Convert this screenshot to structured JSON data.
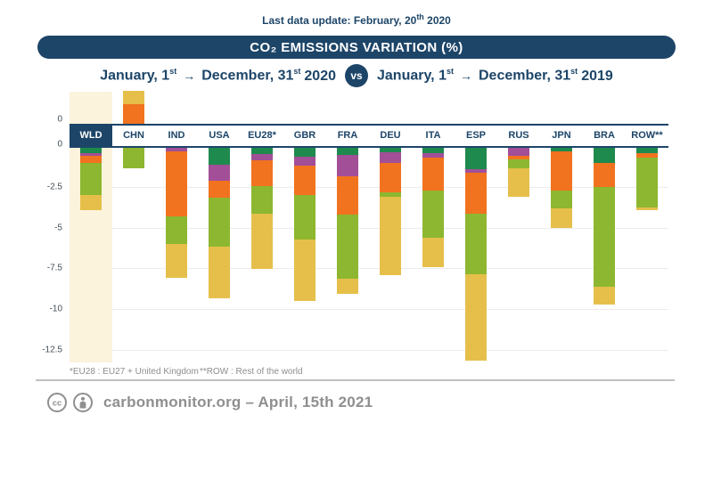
{
  "update_note": {
    "prefix": "Last data update: February, 20",
    "sup": "th",
    "suffix": " 2020"
  },
  "title": "CO₂ EMISSIONS VARIATION (%)",
  "subtitle": {
    "left": {
      "d1": "January, 1",
      "s1": "st",
      "arrow": "→",
      "d2": "December, 31",
      "s2": "st",
      "year": "2020"
    },
    "vs": "vs",
    "right": {
      "d1": "January, 1",
      "s1": "st",
      "arrow": "→",
      "d2": "December, 31",
      "s2": "st",
      "year": "2019"
    }
  },
  "footnotes": {
    "eu28": "*EU28 : EU27 + United Kingdom",
    "row": "**ROW : Rest of the world"
  },
  "footer": {
    "cc_label": "cc",
    "credit": "carbonmonitor.org – April, 15th 2021"
  },
  "colors": {
    "navy": "#1d4568",
    "beige": "#fcf3dc",
    "grid": "#ececec",
    "divider": "#bfbfbf",
    "gray_text": "#8f8f8f"
  },
  "chart_data": {
    "type": "bar",
    "stacked": true,
    "orientation": "vertical",
    "unit": "%",
    "title": "CO₂ EMISSIONS VARIATION (%)",
    "comparison": "January 1 – December 31 2020 vs January 1 – December 31 2019",
    "ylim": [
      -13.5,
      2.2
    ],
    "grid": true,
    "legend_position": "none",
    "axis_ticks": [
      {
        "label": "0",
        "value": 0,
        "zero_side": "positive"
      },
      {
        "label": "0",
        "value": 0,
        "zero_side": "negative"
      },
      {
        "label": "-2.5",
        "value": -2.5
      },
      {
        "label": "-5",
        "value": -5
      },
      {
        "label": "-7.5",
        "value": -7.5
      },
      {
        "label": "-10",
        "value": -10
      },
      {
        "label": "-12.5",
        "value": -12.5
      }
    ],
    "segment_colors": {
      "teal": "#1e8a4d",
      "purple": "#a24f98",
      "orange": "#f1731f",
      "ltgreen": "#8db730",
      "yellow": "#e6bf4b"
    },
    "highlight_category": "WLD",
    "categories": [
      "WLD",
      "CHN",
      "IND",
      "USA",
      "EU28*",
      "GBR",
      "FRA",
      "DEU",
      "ITA",
      "ESP",
      "RUS",
      "JPN",
      "BRA",
      "ROW**"
    ],
    "columns": [
      {
        "label": "WLD",
        "total": -3.85,
        "segments": [
          {
            "color": "teal",
            "value": -0.35
          },
          {
            "color": "purple",
            "value": -0.15
          },
          {
            "color": "orange",
            "value": -0.45
          },
          {
            "color": "ltgreen",
            "value": -1.95
          },
          {
            "color": "yellow",
            "value": -0.95
          }
        ]
      },
      {
        "label": "CHN",
        "total": 0.75,
        "segments": [
          {
            "color": "orange",
            "value": 1.2
          },
          {
            "color": "yellow",
            "value": 0.8
          },
          {
            "color": "ltgreen",
            "value": -1.25
          }
        ]
      },
      {
        "label": "IND",
        "total": -8.0,
        "segments": [
          {
            "color": "purple",
            "value": -0.2
          },
          {
            "color": "orange",
            "value": -4.0
          },
          {
            "color": "ltgreen",
            "value": -1.7
          },
          {
            "color": "yellow",
            "value": -2.1
          }
        ]
      },
      {
        "label": "USA",
        "total": -9.25,
        "segments": [
          {
            "color": "teal",
            "value": -1.05
          },
          {
            "color": "purple",
            "value": -0.95
          },
          {
            "color": "orange",
            "value": -1.05
          },
          {
            "color": "ltgreen",
            "value": -3.0
          },
          {
            "color": "yellow",
            "value": -3.2
          }
        ]
      },
      {
        "label": "EU28*",
        "total": -7.45,
        "segments": [
          {
            "color": "teal",
            "value": -0.4
          },
          {
            "color": "purple",
            "value": -0.35
          },
          {
            "color": "orange",
            "value": -1.6
          },
          {
            "color": "ltgreen",
            "value": -1.7
          },
          {
            "color": "yellow",
            "value": -3.4
          }
        ]
      },
      {
        "label": "GBR",
        "total": -9.4,
        "segments": [
          {
            "color": "teal",
            "value": -0.55
          },
          {
            "color": "purple",
            "value": -0.55
          },
          {
            "color": "orange",
            "value": -1.8
          },
          {
            "color": "ltgreen",
            "value": -2.75
          },
          {
            "color": "yellow",
            "value": -3.75
          }
        ]
      },
      {
        "label": "FRA",
        "total": -8.95,
        "segments": [
          {
            "color": "teal",
            "value": -0.45
          },
          {
            "color": "purple",
            "value": -1.3
          },
          {
            "color": "orange",
            "value": -2.35
          },
          {
            "color": "ltgreen",
            "value": -3.95
          },
          {
            "color": "yellow",
            "value": -0.9
          }
        ]
      },
      {
        "label": "DEU",
        "total": -7.8,
        "segments": [
          {
            "color": "teal",
            "value": -0.3
          },
          {
            "color": "purple",
            "value": -0.65
          },
          {
            "color": "orange",
            "value": -1.8
          },
          {
            "color": "ltgreen",
            "value": -0.25
          },
          {
            "color": "yellow",
            "value": -4.8
          }
        ]
      },
      {
        "label": "ITA",
        "total": -7.35,
        "segments": [
          {
            "color": "teal",
            "value": -0.35
          },
          {
            "color": "purple",
            "value": -0.25
          },
          {
            "color": "orange",
            "value": -2.0
          },
          {
            "color": "ltgreen",
            "value": -2.9
          },
          {
            "color": "yellow",
            "value": -1.85
          }
        ]
      },
      {
        "label": "ESP",
        "total": -13.05,
        "segments": [
          {
            "color": "teal",
            "value": -1.3
          },
          {
            "color": "purple",
            "value": -0.25
          },
          {
            "color": "orange",
            "value": -2.5
          },
          {
            "color": "ltgreen",
            "value": -3.7
          },
          {
            "color": "yellow",
            "value": -5.3
          }
        ]
      },
      {
        "label": "RUS",
        "total": -3.0,
        "segments": [
          {
            "color": "purple",
            "value": -0.5
          },
          {
            "color": "orange",
            "value": -0.2
          },
          {
            "color": "ltgreen",
            "value": -0.55
          },
          {
            "color": "yellow",
            "value": -1.75
          }
        ]
      },
      {
        "label": "JPN",
        "total": -4.9,
        "segments": [
          {
            "color": "teal",
            "value": -0.2
          },
          {
            "color": "orange",
            "value": -2.4
          },
          {
            "color": "ltgreen",
            "value": -1.1
          },
          {
            "color": "yellow",
            "value": -1.2
          }
        ]
      },
      {
        "label": "BRA",
        "total": -9.6,
        "segments": [
          {
            "color": "teal",
            "value": -0.95
          },
          {
            "color": "orange",
            "value": -1.45
          },
          {
            "color": "ltgreen",
            "value": -6.1
          },
          {
            "color": "yellow",
            "value": -1.1
          }
        ]
      },
      {
        "label": "ROW**",
        "total": -3.85,
        "segments": [
          {
            "color": "teal",
            "value": -0.35
          },
          {
            "color": "orange",
            "value": -0.25
          },
          {
            "color": "ltgreen",
            "value": -3.05
          },
          {
            "color": "yellow",
            "value": -0.2
          }
        ]
      }
    ]
  }
}
